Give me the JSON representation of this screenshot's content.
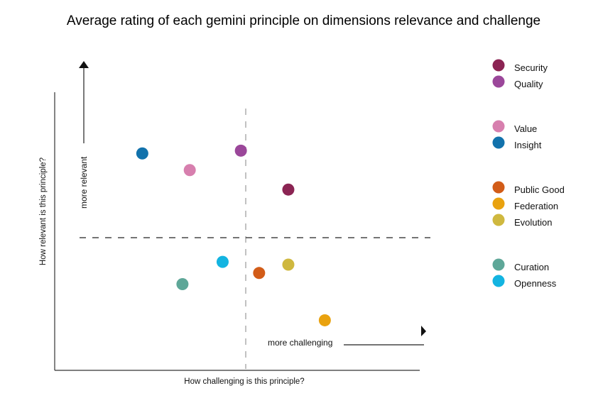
{
  "chart_data": {
    "type": "scatter",
    "title": "Average rating of each gemini principle on dimensions relevance and challenge",
    "xlabel": "How challenging is this principle?",
    "ylabel": "How relevant is this principle?",
    "annotations": {
      "up": "more relevant",
      "right": "more challenging"
    },
    "grid": false,
    "legend_position": "right",
    "series": [
      {
        "name": "Security",
        "color": "#8b2453",
        "x": 6.4,
        "y": 6.5
      },
      {
        "name": "Quality",
        "color": "#9b479a",
        "x": 5.1,
        "y": 7.9
      },
      {
        "name": "Value",
        "color": "#d77fae",
        "x": 3.7,
        "y": 7.2
      },
      {
        "name": "Insight",
        "color": "#1272ac",
        "x": 2.4,
        "y": 7.8
      },
      {
        "name": "Public Good",
        "color": "#d25c18",
        "x": 5.6,
        "y": 3.5
      },
      {
        "name": "Federation",
        "color": "#e9a20f",
        "x": 7.4,
        "y": 1.8
      },
      {
        "name": "Evolution",
        "color": "#cfb83f",
        "x": 6.4,
        "y": 3.8
      },
      {
        "name": "Curation",
        "color": "#5ea798",
        "x": 3.5,
        "y": 3.1
      },
      {
        "name": "Openness",
        "color": "#13b4e1",
        "x": 4.6,
        "y": 3.9
      }
    ],
    "legend_groups": [
      [
        "Security",
        "Quality"
      ],
      [
        "Value",
        "Insight"
      ],
      [
        "Public Good",
        "Federation",
        "Evolution"
      ],
      [
        "Curation",
        "Openness"
      ]
    ],
    "xlim": [
      0,
      10
    ],
    "ylim": [
      0,
      10
    ],
    "divider_x": 5,
    "divider_y": 5
  }
}
